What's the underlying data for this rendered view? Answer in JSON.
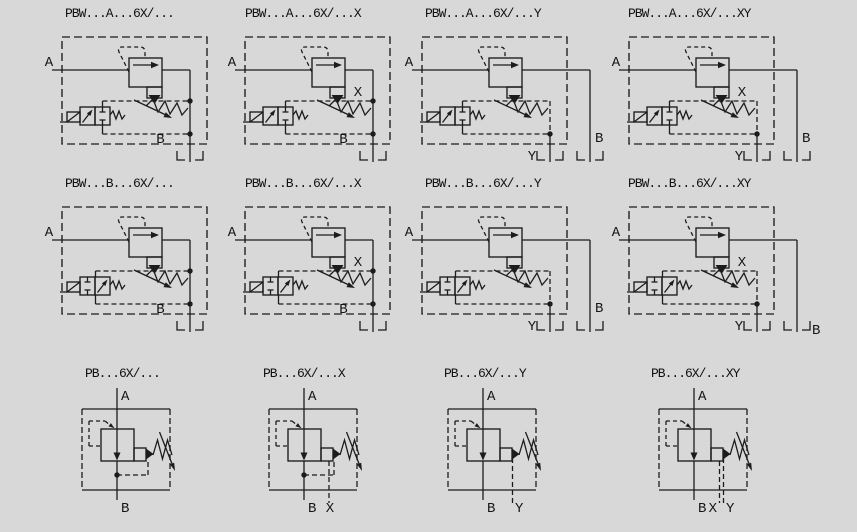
{
  "page": {
    "background": "#d8d8d8",
    "line_color": "#1c1c1c",
    "text_color": "#141414"
  },
  "diagrams": [
    {
      "id": "pbw-a-basic",
      "title": "PBW...A...6X/...",
      "family": "PBW",
      "solenoid_variant": "A",
      "ports": {
        "a": "A",
        "b": "B"
      }
    },
    {
      "id": "pbw-a-x",
      "title": "PBW...A...6X/...X",
      "family": "PBW",
      "solenoid_variant": "A",
      "ports": {
        "a": "A",
        "b": "B",
        "x": "X"
      }
    },
    {
      "id": "pbw-a-y",
      "title": "PBW...A...6X/...Y",
      "family": "PBW",
      "solenoid_variant": "A",
      "ports": {
        "a": "A",
        "b": "B",
        "y": "Y"
      }
    },
    {
      "id": "pbw-a-xy",
      "title": "PBW...A...6X/...XY",
      "family": "PBW",
      "solenoid_variant": "A",
      "ports": {
        "a": "A",
        "b": "B",
        "x": "X",
        "y": "Y"
      }
    },
    {
      "id": "pbw-b-basic",
      "title": "PBW...B...6X/...",
      "family": "PBW",
      "solenoid_variant": "B",
      "ports": {
        "a": "A",
        "b": "B"
      }
    },
    {
      "id": "pbw-b-x",
      "title": "PBW...B...6X/...X",
      "family": "PBW",
      "solenoid_variant": "B",
      "ports": {
        "a": "A",
        "b": "B",
        "x": "X"
      }
    },
    {
      "id": "pbw-b-y",
      "title": "PBW...B...6X/...Y",
      "family": "PBW",
      "solenoid_variant": "B",
      "ports": {
        "a": "A",
        "b": "B",
        "y": "Y"
      }
    },
    {
      "id": "pbw-b-xy",
      "title": "PBW...B...6X/...XY",
      "family": "PBW",
      "solenoid_variant": "B",
      "ports": {
        "a": "A",
        "b": "B",
        "x": "X",
        "y": "Y"
      }
    },
    {
      "id": "pb-basic",
      "title": "PB...6X/...",
      "family": "PB",
      "ports": {
        "a": "A",
        "b": "B"
      }
    },
    {
      "id": "pb-x",
      "title": "PB...6X/...X",
      "family": "PB",
      "ports": {
        "a": "A",
        "b": "B",
        "x": "X"
      }
    },
    {
      "id": "pb-y",
      "title": "PB...6X/...Y",
      "family": "PB",
      "ports": {
        "a": "A",
        "b": "B",
        "y": "Y"
      }
    },
    {
      "id": "pb-xy",
      "title": "PB...6X/...XY",
      "family": "PB",
      "ports": {
        "a": "A",
        "b": "B",
        "x": "X",
        "y": "Y"
      }
    }
  ]
}
